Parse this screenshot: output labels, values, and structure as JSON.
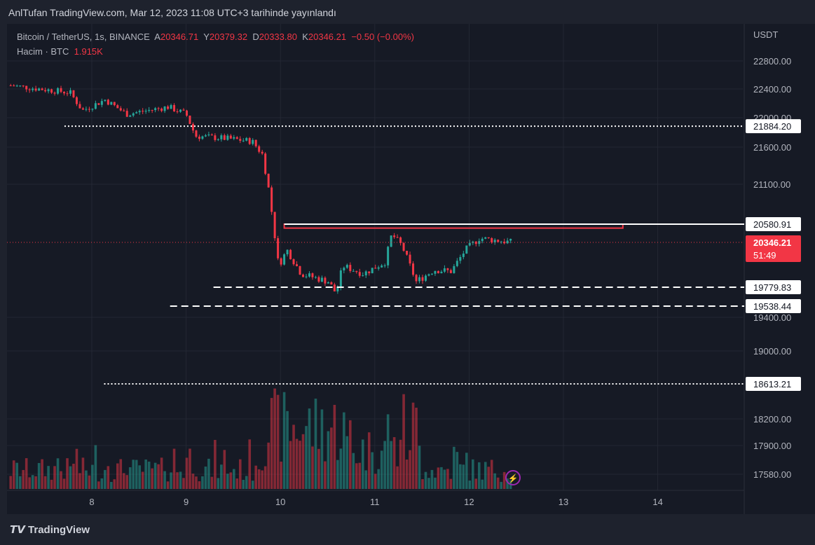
{
  "header": "AnlTufan TradingView.com, Mar 12, 2023 11:08 UTC+3 tarihinde yayınlandı",
  "legend": {
    "symbol": "Bitcoin / TetherUS, 1s, BINANCE",
    "o_label": "A",
    "o": "20346.71",
    "h_label": "Y",
    "h": "20379.32",
    "l_label": "D",
    "l": "20333.80",
    "c_label": "K",
    "c": "20346.21",
    "change": "−0.50 (−0.00%)",
    "volume_label": "Hacim · BTC",
    "volume": "1.915K"
  },
  "logo": "TradingView",
  "colors": {
    "up": "#26a69a",
    "down": "#f23645",
    "bg": "#161a25"
  },
  "chart_data": {
    "type": "candlestick",
    "currency": "USDT",
    "y_ticks": [
      22800,
      22400,
      22000,
      21600,
      21100,
      19400,
      19000,
      18200,
      17900,
      17580
    ],
    "x_ticks": [
      "8",
      "9",
      "10",
      "11",
      "12",
      "13",
      "14"
    ],
    "price_path": [
      [
        7.14,
        22450
      ],
      [
        7.77,
        22350
      ],
      [
        7.9,
        22100
      ],
      [
        8.14,
        22250
      ],
      [
        8.37,
        22050
      ],
      [
        8.81,
        22150
      ],
      [
        9.0,
        22050
      ],
      [
        9.1,
        21750
      ],
      [
        9.4,
        21720
      ],
      [
        9.7,
        21680
      ],
      [
        9.81,
        21500
      ],
      [
        9.88,
        21000
      ],
      [
        9.98,
        20050
      ],
      [
        10.07,
        20250
      ],
      [
        10.22,
        19950
      ],
      [
        10.51,
        19850
      ],
      [
        10.59,
        19700
      ],
      [
        10.66,
        20050
      ],
      [
        10.88,
        19950
      ],
      [
        11.11,
        20100
      ],
      [
        11.18,
        20450
      ],
      [
        11.29,
        20300
      ],
      [
        11.44,
        19850
      ],
      [
        11.63,
        20000
      ],
      [
        11.81,
        19980
      ],
      [
        11.96,
        20250
      ],
      [
        12.11,
        20400
      ],
      [
        12.46,
        20346
      ]
    ],
    "levels": [
      {
        "label": "21884.20",
        "value": 21884.2,
        "style": "dotted",
        "from_day": 7.71
      },
      {
        "label": "20580.91",
        "value": 20580.91,
        "style": "solid",
        "from_day": 10.04
      },
      {
        "label": "19779.83",
        "value": 19779.83,
        "style": "dashed",
        "from_day": 9.29
      },
      {
        "label": "19538.44",
        "value": 19538.44,
        "style": "dashed",
        "from_day": 8.83
      },
      {
        "label": "18613.21",
        "value": 18613.21,
        "style": "dotted",
        "from_day": 8.13
      }
    ],
    "resistance_zone": {
      "from_day": 10.04,
      "to_day": 13.63,
      "top": 20580.91,
      "bottom": 20530
    },
    "last_price": {
      "label": "20346.21",
      "value": 20346.21,
      "countdown": "51:49"
    }
  }
}
